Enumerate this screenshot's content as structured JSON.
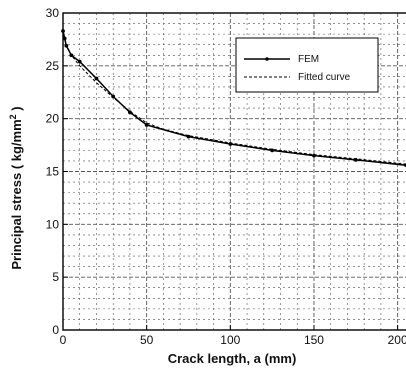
{
  "chart_data": {
    "type": "line",
    "xlabel": "Crack length, a (mm)",
    "ylabel_main": "Principal stress ( kg/mm",
    "ylabel_sup": "2",
    "ylabel_end": " )",
    "xlim": [
      0,
      205
    ],
    "ylim": [
      0,
      30
    ],
    "xticks": [
      0,
      50,
      100,
      150,
      200
    ],
    "yticks": [
      0,
      5,
      10,
      15,
      20,
      25,
      30
    ],
    "grid": true,
    "legend_position": "top-right",
    "series": [
      {
        "name": "FEM",
        "style": "solid-with-markers",
        "x": [
          0,
          1,
          2,
          5,
          10,
          20,
          30,
          40,
          50,
          75,
          100,
          125,
          150,
          175,
          205
        ],
        "y": [
          28.3,
          27.6,
          26.9,
          26.0,
          25.4,
          23.8,
          22.1,
          20.6,
          19.4,
          18.3,
          17.6,
          17.0,
          16.5,
          16.1,
          15.6
        ]
      },
      {
        "name": "Fitted curve",
        "style": "dashed",
        "x": [
          0,
          2,
          5,
          10,
          20,
          30,
          40,
          50,
          60,
          75,
          100,
          125,
          150,
          175,
          205
        ],
        "y": [
          28.0,
          27.0,
          26.0,
          25.0,
          23.4,
          22.0,
          20.7,
          19.6,
          19.0,
          18.4,
          17.7,
          17.1,
          16.6,
          16.2,
          15.7
        ]
      }
    ]
  }
}
